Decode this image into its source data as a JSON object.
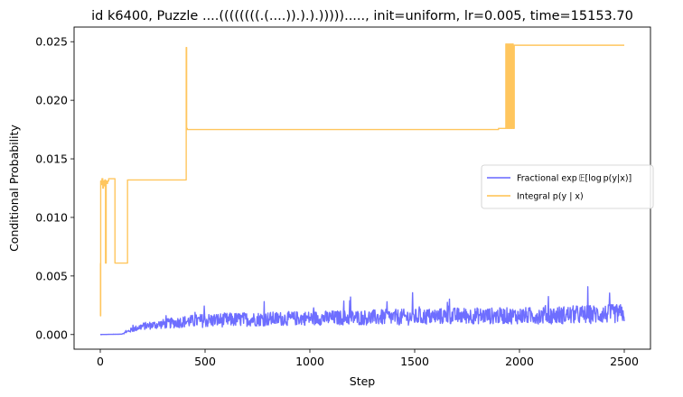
{
  "chart_data": {
    "type": "line",
    "title": "id k6400, Puzzle ....((((((((.(....)).).).))))).....,  init=uniform, lr=0.005, time=15153.70",
    "xlabel": "Step",
    "ylabel": "Conditional Probability",
    "xlim": [
      -125,
      2625
    ],
    "ylim": [
      -0.00125,
      0.02625
    ],
    "xticks": [
      0,
      500,
      1000,
      1500,
      2000,
      2500
    ],
    "xtick_labels": [
      "0",
      "500",
      "1000",
      "1500",
      "2000",
      "2500"
    ],
    "yticks": [
      0.0,
      0.005,
      0.01,
      0.015,
      0.02,
      0.025
    ],
    "ytick_labels": [
      "0.000",
      "0.005",
      "0.010",
      "0.015",
      "0.020",
      "0.025"
    ],
    "grid": false,
    "legend_position": "center-right",
    "series": [
      {
        "name": "Fractional exp 𝔼[log p(y|x)]",
        "color": "#6666ff",
        "style": "noisy",
        "x": [
          0,
          100,
          150,
          200,
          300,
          400,
          500,
          700,
          1000,
          1500,
          1700,
          2000,
          2300,
          2500
        ],
        "y": [
          0.0,
          3e-05,
          0.0004,
          0.0007,
          0.0009,
          0.0011,
          0.0012,
          0.0013,
          0.0014,
          0.0015,
          0.0016,
          0.0016,
          0.0017,
          0.0018
        ],
        "noise_amplitude": [
          0.0,
          1e-05,
          0.0002,
          0.0003,
          0.0004,
          0.0005,
          0.0006,
          0.0006,
          0.0006,
          0.0007,
          0.0007,
          0.0007,
          0.0008,
          0.0008
        ]
      },
      {
        "name": "Integral p(y | x)",
        "color": "#ffc04d",
        "style": "step",
        "x": [
          0,
          1,
          2,
          5,
          8,
          12,
          15,
          18,
          22,
          25,
          28,
          32,
          35,
          40,
          50,
          70,
          100,
          130,
          140,
          300,
          410,
          412,
          415,
          420,
          700,
          1000,
          1500,
          1900,
          1935,
          1938,
          1942,
          1945,
          1950,
          1953,
          1958,
          1962,
          1966,
          1970,
          1975,
          2000,
          2500
        ],
        "y": [
          0.0061,
          0.0016,
          0.0131,
          0.0128,
          0.0133,
          0.0125,
          0.0131,
          0.0127,
          0.0132,
          0.0061,
          0.0131,
          0.0129,
          0.0131,
          0.0133,
          0.0133,
          0.0061,
          0.0061,
          0.0132,
          0.0132,
          0.0132,
          0.0245,
          0.0176,
          0.0175,
          0.0175,
          0.0175,
          0.0175,
          0.0175,
          0.0176,
          0.0248,
          0.0176,
          0.0248,
          0.0176,
          0.0248,
          0.0176,
          0.0248,
          0.0176,
          0.0248,
          0.0176,
          0.0247,
          0.0247,
          0.0247
        ]
      }
    ]
  }
}
